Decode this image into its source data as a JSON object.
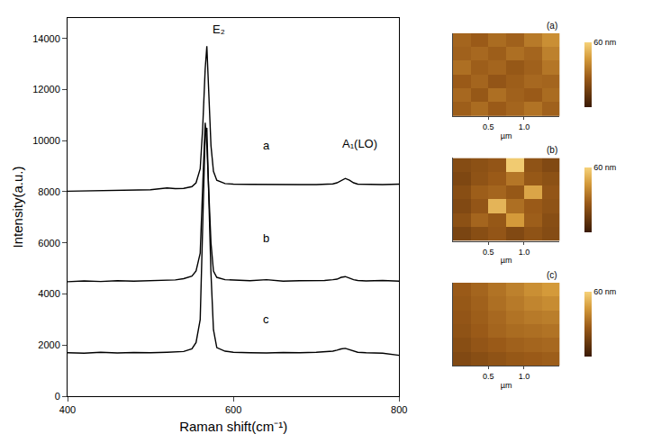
{
  "chart_data": [
    {
      "type": "line",
      "xlabel": "Raman shift(cm⁻¹)",
      "ylabel": "Intensity(a.u.)",
      "xlim": [
        400,
        800
      ],
      "xticks": [
        400,
        600,
        800
      ],
      "ylim": [
        0,
        14800
      ],
      "yticks": [
        0,
        2000,
        4000,
        6000,
        8000,
        10000,
        12000,
        14000
      ],
      "grid": false,
      "x": [
        400,
        420,
        440,
        460,
        480,
        500,
        520,
        530,
        540,
        550,
        555,
        560,
        563,
        566,
        568,
        570,
        573,
        576,
        580,
        590,
        600,
        620,
        640,
        660,
        680,
        700,
        710,
        720,
        725,
        730,
        735,
        740,
        745,
        750,
        760,
        780,
        800
      ],
      "series": [
        {
          "color": "#000000",
          "values": [
            8020,
            8030,
            8040,
            8050,
            8060,
            8080,
            8150,
            8120,
            8130,
            8200,
            8350,
            8900,
            10500,
            12800,
            13700,
            12000,
            9800,
            8800,
            8450,
            8320,
            8300,
            8290,
            8280,
            8280,
            8280,
            8280,
            8290,
            8310,
            8350,
            8450,
            8520,
            8450,
            8350,
            8300,
            8290,
            8280,
            8300
          ]
        },
        {
          "color": "#000000",
          "values": [
            4480,
            4510,
            4490,
            4520,
            4500,
            4510,
            4530,
            4550,
            4600,
            4700,
            4900,
            5600,
            8200,
            10700,
            9800,
            8300,
            6000,
            4900,
            4650,
            4560,
            4540,
            4520,
            4560,
            4500,
            4520,
            4510,
            4530,
            4560,
            4580,
            4650,
            4680,
            4620,
            4560,
            4530,
            4510,
            4530,
            4500
          ]
        },
        {
          "color": "#000000",
          "values": [
            1700,
            1680,
            1720,
            1690,
            1710,
            1700,
            1720,
            1730,
            1750,
            1850,
            2100,
            3000,
            6500,
            10300,
            10500,
            8000,
            4800,
            2600,
            1900,
            1760,
            1720,
            1700,
            1690,
            1710,
            1700,
            1720,
            1740,
            1760,
            1800,
            1850,
            1870,
            1820,
            1760,
            1720,
            1700,
            1680,
            1600
          ]
        }
      ],
      "annotations": [
        {
          "text": "E₂",
          "x": 582,
          "y": 14350
        },
        {
          "text": "A₁(LO)",
          "x": 752,
          "y": 9900
        },
        {
          "text": "a",
          "x": 640,
          "y": 9800
        },
        {
          "text": "b",
          "x": 640,
          "y": 6200
        },
        {
          "text": "c",
          "x": 640,
          "y": 3000
        }
      ]
    },
    {
      "type": "heatmap",
      "title": "(a)",
      "xlabel": "µm",
      "x": [
        0.125,
        0.375,
        0.625,
        0.875,
        1.125,
        1.375
      ],
      "y": [
        0.125,
        0.375,
        0.625,
        0.875,
        1.125,
        1.375
      ],
      "xlim": [
        0,
        1.5
      ],
      "xticks": [
        0.5,
        {
          "value": 1.0,
          "label": "1.0"
        }
      ],
      "ylim": [
        0,
        1.5
      ],
      "tick_labels": "x",
      "z": [
        [
          28,
          32,
          27,
          30,
          34,
          29
        ],
        [
          31,
          26,
          33,
          29,
          27,
          32
        ],
        [
          27,
          30,
          25,
          28,
          31,
          30
        ],
        [
          33,
          28,
          30,
          26,
          29,
          35
        ],
        [
          29,
          31,
          28,
          33,
          30,
          38
        ],
        [
          30,
          27,
          32,
          29,
          36,
          42
        ]
      ],
      "colorbar": {
        "range": [
          0,
          60
        ],
        "ticks": [
          {
            "value": 60,
            "label": "60 nm"
          }
        ]
      }
    },
    {
      "type": "heatmap",
      "title": "(b)",
      "xlabel": "µm",
      "x": [
        0.125,
        0.375,
        0.625,
        0.875,
        1.125,
        1.375
      ],
      "y": [
        0.125,
        0.375,
        0.625,
        0.875,
        1.125,
        1.375
      ],
      "xlim": [
        0,
        1.5
      ],
      "xticks": [
        0.5,
        {
          "value": 1.0,
          "label": "1.0"
        }
      ],
      "ylim": [
        0,
        1.5
      ],
      "tick_labels": "x",
      "z": [
        [
          18,
          22,
          25,
          20,
          24,
          21
        ],
        [
          23,
          30,
          26,
          45,
          28,
          22
        ],
        [
          20,
          25,
          52,
          33,
          27,
          24
        ],
        [
          22,
          28,
          30,
          26,
          48,
          25
        ],
        [
          19,
          24,
          27,
          35,
          26,
          23
        ],
        [
          21,
          23,
          25,
          58,
          24,
          20
        ]
      ],
      "colorbar": {
        "range": [
          0,
          60
        ],
        "ticks": [
          {
            "value": 60,
            "label": "60 nm"
          }
        ]
      }
    },
    {
      "type": "heatmap",
      "title": "(c)",
      "xlabel": "µm",
      "x": [
        0.125,
        0.375,
        0.625,
        0.875,
        1.125,
        1.375
      ],
      "y": [
        0.125,
        0.375,
        0.625,
        0.875,
        1.125,
        1.375
      ],
      "xlim": [
        0,
        1.5
      ],
      "xticks": [
        0.5,
        {
          "value": 1.0,
          "label": "1.0"
        }
      ],
      "ylim": [
        0,
        1.5
      ],
      "tick_labels": "x",
      "z": [
        [
          20,
          22,
          24,
          26,
          27,
          28
        ],
        [
          22,
          25,
          27,
          29,
          30,
          31
        ],
        [
          24,
          27,
          30,
          32,
          33,
          34
        ],
        [
          25,
          28,
          31,
          34,
          36,
          37
        ],
        [
          26,
          29,
          33,
          36,
          39,
          41
        ],
        [
          27,
          30,
          34,
          38,
          42,
          45
        ]
      ],
      "colorbar": {
        "range": [
          0,
          60
        ],
        "ticks": [
          {
            "value": 60,
            "label": "60 nm"
          }
        ]
      }
    }
  ]
}
